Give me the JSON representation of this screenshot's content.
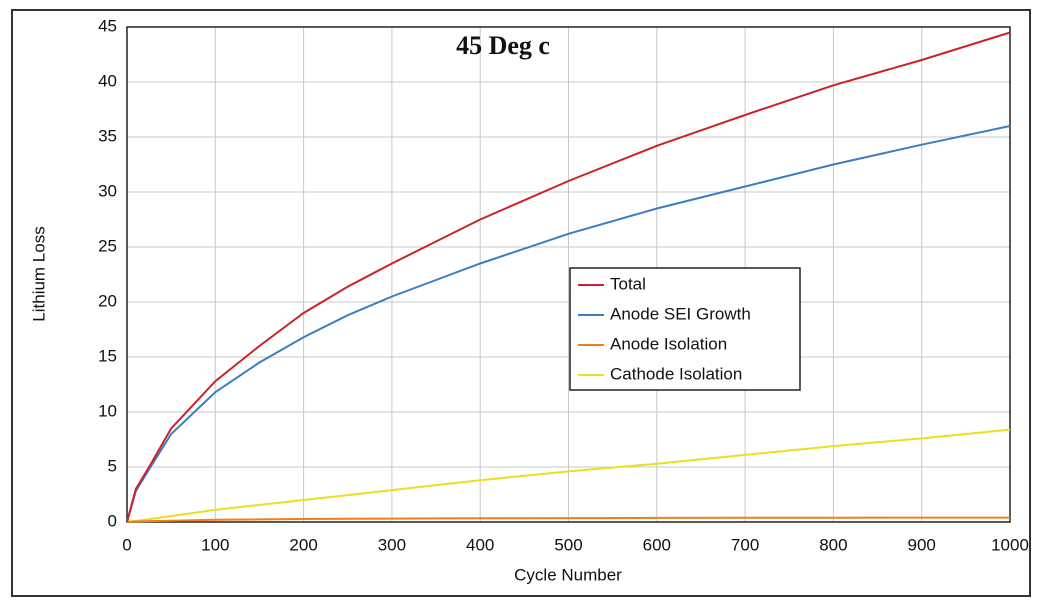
{
  "chart_data": {
    "type": "line",
    "title": "45 Deg c",
    "x_label": "Cycle Number",
    "y_label": "Lithium Loss",
    "x": [
      0,
      10,
      25,
      50,
      100,
      150,
      200,
      250,
      300,
      350,
      400,
      500,
      600,
      700,
      800,
      900,
      1000
    ],
    "series": [
      {
        "name": "Total",
        "color": "#cc2229",
        "values": [
          0,
          3,
          5,
          8.5,
          12.8,
          16,
          19,
          21.4,
          23.5,
          25.5,
          27.5,
          31,
          34.2,
          37,
          39.7,
          42,
          44.5
        ]
      },
      {
        "name": "Anode SEI Growth",
        "color": "#3a7fc1",
        "values": [
          0,
          2.8,
          4.8,
          8,
          11.8,
          14.5,
          16.8,
          18.8,
          20.5,
          22,
          23.5,
          26.2,
          28.5,
          30.5,
          32.5,
          34.3,
          36
        ]
      },
      {
        "name": "Anode Isolation",
        "color": "#f07f18",
        "values": [
          0,
          0.05,
          0.08,
          0.12,
          0.2,
          0.24,
          0.27,
          0.29,
          0.31,
          0.33,
          0.34,
          0.35,
          0.37,
          0.38,
          0.39,
          0.4,
          0.4
        ]
      },
      {
        "name": "Cathode Isolation",
        "color": "#eedd22",
        "values": [
          0,
          0.1,
          0.25,
          0.55,
          1.1,
          1.55,
          2,
          2.45,
          2.9,
          3.35,
          3.8,
          4.6,
          5.3,
          6.1,
          6.9,
          7.6,
          8.4
        ]
      }
    ],
    "xlim": [
      0,
      1000
    ],
    "xticks": [
      0,
      100,
      200,
      300,
      400,
      500,
      600,
      700,
      800,
      900,
      1000
    ],
    "ylim": [
      0,
      45
    ],
    "yticks": [
      0,
      5,
      10,
      15,
      20,
      25,
      30,
      35,
      40,
      45
    ],
    "grid": true
  }
}
